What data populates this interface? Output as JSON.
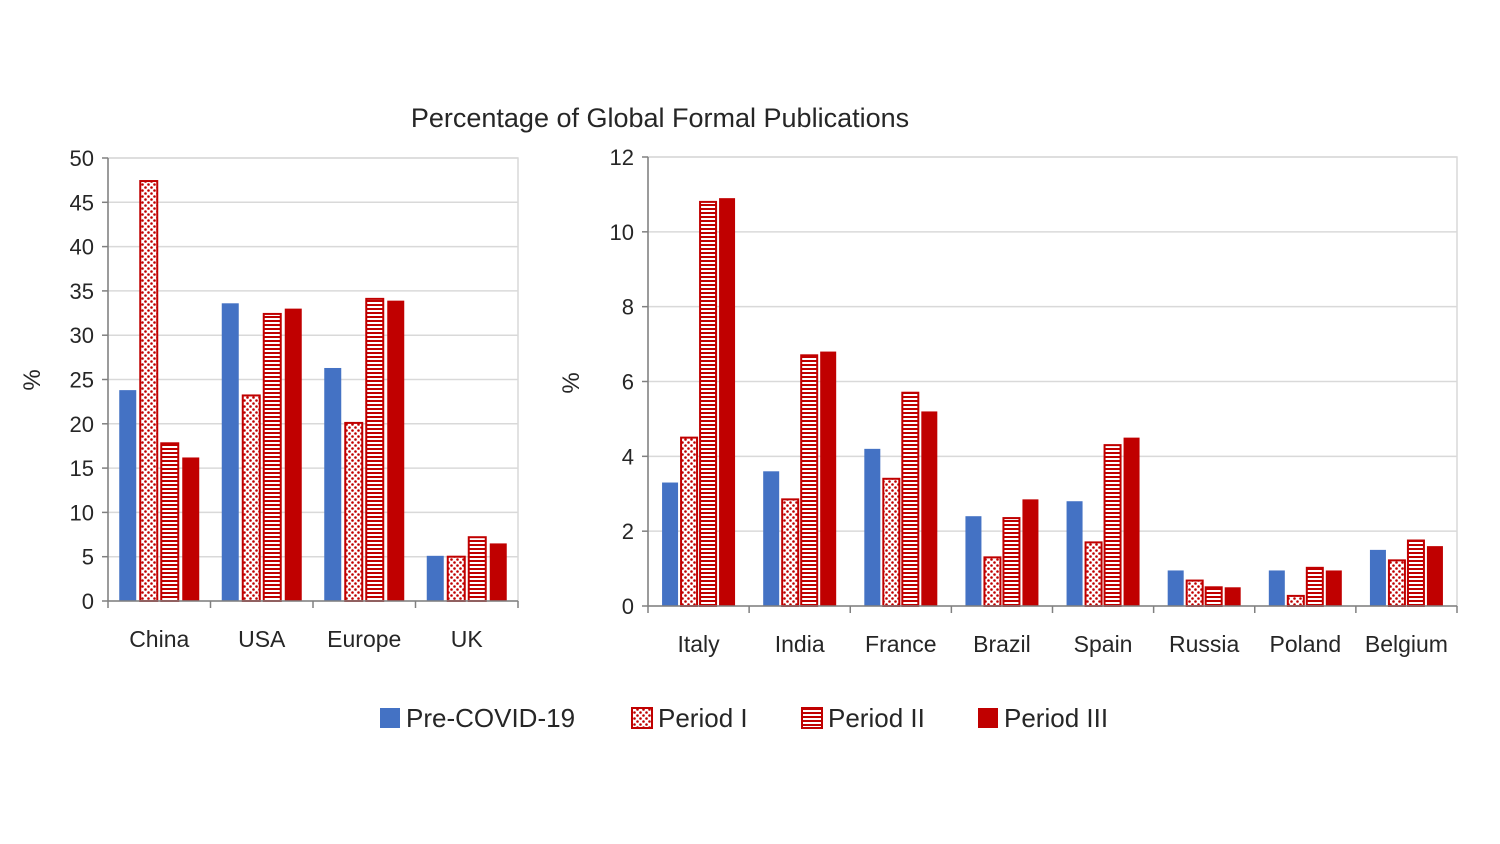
{
  "title": "Percentage of Global Formal Publications",
  "colors": {
    "pre": "#4472C4",
    "red": "#C00000",
    "grid": "#D9D9D9",
    "axis": "#808080"
  },
  "legend": {
    "items": [
      {
        "name": "Pre-COVID-19",
        "pattern": "solid-blue"
      },
      {
        "name": "Period I",
        "pattern": "dots-red"
      },
      {
        "name": "Period II",
        "pattern": "hlines-red"
      },
      {
        "name": "Period III",
        "pattern": "solid-red"
      }
    ],
    "placement": "bottom"
  },
  "chart_data": [
    {
      "type": "bar",
      "ylabel": "%",
      "ylim": [
        0,
        50
      ],
      "yticks": [
        "0",
        "5",
        "10",
        "15",
        "20",
        "25",
        "30",
        "35",
        "40",
        "45",
        "50"
      ],
      "grid": true,
      "categories": [
        "China",
        "USA",
        "Europe",
        "UK"
      ],
      "series": [
        {
          "name": "Pre-COVID-19",
          "values": [
            23.8,
            33.6,
            26.3,
            5.1
          ]
        },
        {
          "name": "Period I",
          "values": [
            47.4,
            23.2,
            20.1,
            5.0
          ]
        },
        {
          "name": "Period II",
          "values": [
            17.8,
            32.4,
            34.1,
            7.2
          ]
        },
        {
          "name": "Period III",
          "values": [
            16.2,
            33.0,
            33.9,
            6.5
          ]
        }
      ]
    },
    {
      "type": "bar",
      "ylabel": "%",
      "ylim": [
        0,
        12
      ],
      "yticks": [
        "0",
        "2",
        "4",
        "6",
        "8",
        "10",
        "12"
      ],
      "grid": true,
      "categories": [
        "Italy",
        "India",
        "France",
        "Brazil",
        "Spain",
        "Russia",
        "Poland",
        "Belgium"
      ],
      "series": [
        {
          "name": "Pre-COVID-19",
          "values": [
            3.3,
            3.6,
            4.2,
            2.4,
            2.8,
            0.95,
            0.95,
            1.5
          ]
        },
        {
          "name": "Period I",
          "values": [
            4.5,
            2.85,
            3.4,
            1.3,
            1.7,
            0.68,
            0.27,
            1.22
          ]
        },
        {
          "name": "Period II",
          "values": [
            10.8,
            6.7,
            5.7,
            2.35,
            4.3,
            0.5,
            1.02,
            1.75
          ]
        },
        {
          "name": "Period III",
          "values": [
            10.9,
            6.8,
            5.2,
            2.85,
            4.5,
            0.5,
            0.95,
            1.6
          ]
        }
      ]
    }
  ]
}
